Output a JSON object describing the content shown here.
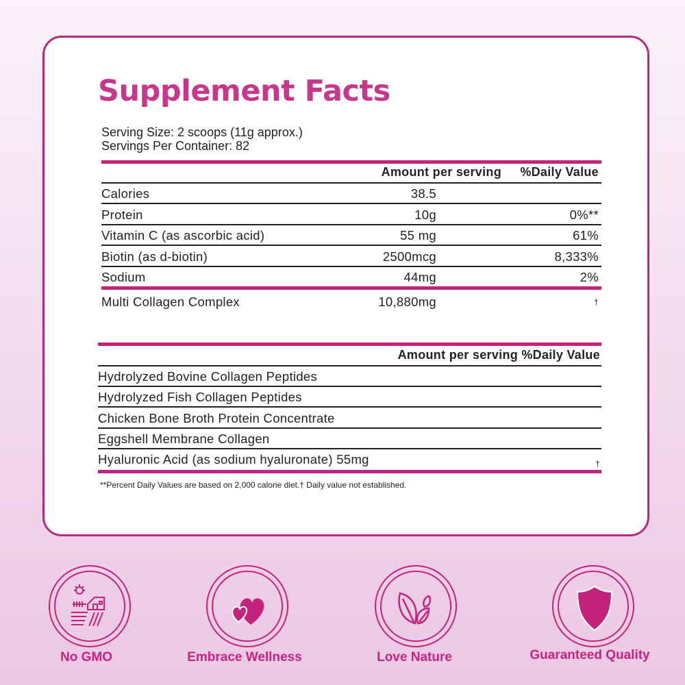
{
  "title": "Supplement Facts",
  "serving_size": "Serving Size: 2 scoops (11g approx.)",
  "servings_per_container": "Servings Per Container: 82",
  "table1": {
    "header_amount": "Amount per serving",
    "header_dv": "%Daily Value",
    "rows": [
      {
        "name": "Calories",
        "amount": "38.5",
        "dv": ""
      },
      {
        "name": "Protein",
        "amount": "10g",
        "dv": "0%**"
      },
      {
        "name": "Vitamin C (as ascorbic acid)",
        "amount": "55 mg",
        "dv": "61%"
      },
      {
        "name": "Biotin (as d-biotin)",
        "amount": "2500mcg",
        "dv": "8,333%"
      },
      {
        "name": "Sodium",
        "amount": "44mg",
        "dv": "2%"
      }
    ],
    "complex": {
      "name": "Multi Collagen Complex",
      "amount": "10,880mg",
      "dv": "†"
    }
  },
  "table2": {
    "header": "Amount per serving %Daily Value",
    "rows": [
      {
        "name": "Hydrolyzed Bovine Collagen Peptides",
        "amount": "",
        "dv": ""
      },
      {
        "name": "Hydrolyzed Fish Collagen Peptides",
        "amount": "",
        "dv": ""
      },
      {
        "name": "Chicken Bone Broth Protein Concentrate",
        "amount": "",
        "dv": ""
      },
      {
        "name": "Eggshell Membrane Collagen",
        "amount": "",
        "dv": ""
      },
      {
        "name": "Hyaluronic Acid (as sodium hyaluronate)",
        "amount": "55mg",
        "dv": "†"
      }
    ]
  },
  "footnote": "**Percent Daily Values are based on 2,000 calorie diet.† Daily value not established.",
  "badges": [
    {
      "label": "No GMO",
      "icon": "farm-icon"
    },
    {
      "label": "Embrace Wellness",
      "icon": "hearts-icon"
    },
    {
      "label": "Love Nature",
      "icon": "leaves-icon"
    },
    {
      "label": "Guaranteed Quality",
      "icon": "shield-icon"
    }
  ],
  "colors": {
    "accent": "#c4237c",
    "title": "#c7378c",
    "border": "#b52a7c"
  }
}
